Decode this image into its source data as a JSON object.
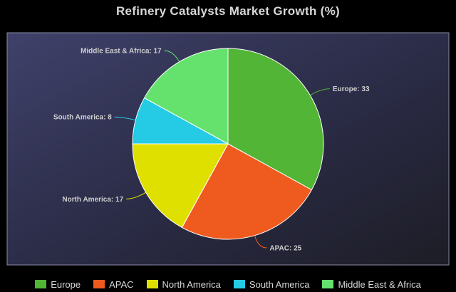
{
  "chart_data": {
    "type": "pie",
    "title": "Refinery Catalysts Market Growth (%)",
    "categories": [
      "Europe",
      "APAC",
      "North America",
      "South America",
      "Middle East & Africa"
    ],
    "values": [
      33,
      25,
      17,
      8,
      17
    ],
    "colors": [
      "#52b535",
      "#ef5a1e",
      "#dfe000",
      "#25cbe4",
      "#65e26e"
    ],
    "slice_labels": [
      "Europe: 33",
      "APAC: 25",
      "North America: 17",
      "South America: 8",
      "Middle East & Africa: 17"
    ],
    "legend_position": "bottom"
  }
}
